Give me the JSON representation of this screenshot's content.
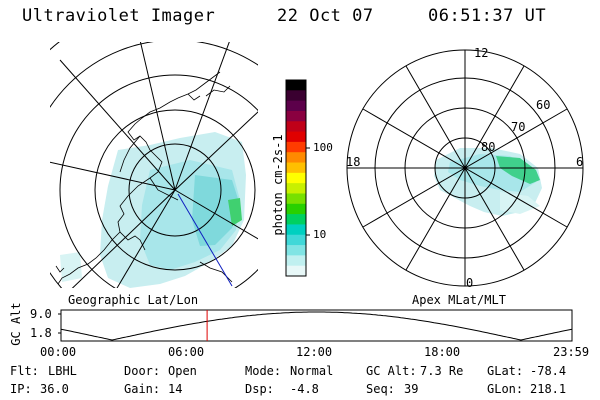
{
  "header": {
    "instrument": "Ultraviolet Imager",
    "date": "22 Oct 07",
    "time": "06:51:37 UT"
  },
  "colorbar": {
    "unit_label": "photon cm-2s-1",
    "ticks": [
      "100",
      "10"
    ],
    "colors": [
      "#000000",
      "#3a0030",
      "#5c004a",
      "#8a0040",
      "#c00018",
      "#e00000",
      "#ff3c00",
      "#ff8a00",
      "#ffc000",
      "#ffff00",
      "#c8f000",
      "#78e000",
      "#28d000",
      "#00d060",
      "#00d0c0",
      "#40d8d8",
      "#80e4e4",
      "#c0f0f0",
      "#e8f8f8"
    ]
  },
  "polar_map": {
    "lat_labels": [
      "80",
      "70",
      "60"
    ],
    "mlt_labels": [
      "12",
      "18",
      "6",
      "0"
    ]
  },
  "panel_labels": {
    "left": "Geographic Lat/Lon",
    "right": "Apex MLat/MLT"
  },
  "altitude_plot": {
    "y_label": "GC Alt",
    "y_ticks": [
      "9.0",
      "1.8"
    ],
    "x_ticks": [
      "00:00",
      "06:00",
      "12:00",
      "18:00",
      "23:59"
    ],
    "current_fraction": 0.286
  },
  "status": {
    "flt_label": "Flt:",
    "flt_value": "LBHL",
    "ip_label": "IP:",
    "ip_value": "36.0",
    "door_label": "Door:",
    "door_value": "Open",
    "gain_label": "Gain:",
    "gain_value": "14",
    "mode_label": "Mode:",
    "mode_value": "Normal",
    "dsp_label": "Dsp:",
    "dsp_value": "-4.8",
    "gcalt_label": "GC Alt:",
    "gcalt_value": "7.3 Re",
    "seq_label": "Seq:",
    "seq_value": "39",
    "glat_label": "GLat:",
    "glat_value": "-78.4",
    "glon_label": "GLon:",
    "glon_value": "218.1"
  }
}
